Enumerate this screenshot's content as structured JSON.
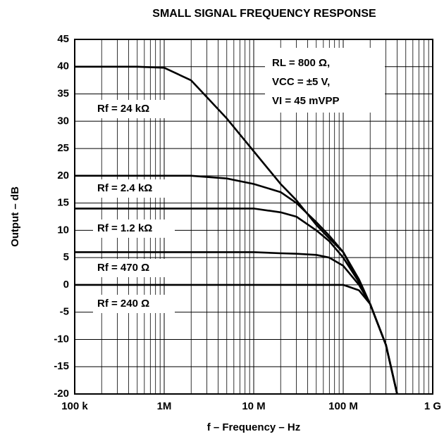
{
  "chart_data": {
    "type": "line",
    "title": "SMALL SIGNAL FREQUENCY RESPONSE",
    "xlabel": "f – Frequency – Hz",
    "ylabel": "Output – dB",
    "annotations": [
      "RL = 800 Ω,",
      "VCC = ±5 V,",
      "VI = 45 mVPP"
    ],
    "xscale": "log",
    "grid": true,
    "minor_grid": true,
    "x": [
      100000,
      200000,
      500000,
      1000000,
      2000000,
      5000000,
      10000000,
      20000000,
      30000000,
      50000000,
      70000000,
      100000000,
      150000000,
      200000000,
      300000000,
      400000000
    ],
    "series": [
      {
        "name": "Rf = 24 kΩ",
        "color": "#000000",
        "values": [
          40,
          40,
          40,
          39.8,
          37.5,
          30.5,
          24.5,
          18.5,
          15.5,
          11,
          8.5,
          6,
          0.5,
          -3.5,
          -11,
          -20
        ]
      },
      {
        "name": "Rf = 2.4 kΩ",
        "color": "#000000",
        "values": [
          20,
          20,
          20,
          20,
          20,
          19.5,
          18.5,
          17,
          15,
          11.5,
          9,
          6,
          1,
          -3.5,
          -11,
          -20
        ]
      },
      {
        "name": "Rf = 1.2 kΩ",
        "color": "#000000",
        "values": [
          14,
          14,
          14,
          14,
          14,
          14,
          14,
          13.3,
          12.5,
          10,
          8,
          5,
          0.5,
          -3.5,
          -11,
          -20
        ]
      },
      {
        "name": "Rf = 470 Ω",
        "color": "#000000",
        "values": [
          6,
          6,
          6,
          6,
          6,
          6,
          6,
          5.8,
          5.7,
          5.5,
          5,
          3.5,
          0,
          -3.5,
          -11,
          -20
        ]
      },
      {
        "name": "Rf = 240 Ω",
        "color": "#000000",
        "values": [
          0,
          0,
          0,
          0,
          0,
          0,
          0,
          0,
          0,
          0,
          0,
          0,
          -1,
          -3.5,
          -11,
          -20
        ]
      }
    ],
    "xlim": [
      100000,
      1000000000
    ],
    "xticks": [
      {
        "value": 100000,
        "label": "100 k"
      },
      {
        "value": 1000000,
        "label": "1M"
      },
      {
        "value": 10000000,
        "label": "10 M"
      },
      {
        "value": 100000000,
        "label": "100 M"
      },
      {
        "value": 1000000000,
        "label": "1 G"
      }
    ],
    "ylim": [
      -20,
      45
    ],
    "yticks": [
      -20,
      -15,
      -10,
      -5,
      0,
      5,
      10,
      15,
      20,
      25,
      30,
      35,
      40,
      45
    ]
  }
}
